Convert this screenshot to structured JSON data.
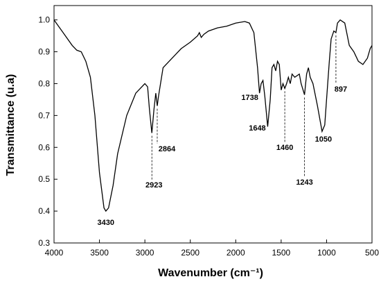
{
  "chart_data": {
    "type": "line",
    "xlabel": "Wavenumber (cm⁻¹)",
    "ylabel": "Transmittance (u.a)",
    "xlim": [
      4000,
      500
    ],
    "ylim": [
      0.3,
      1.045
    ],
    "xticks": [
      4000,
      3500,
      3000,
      2500,
      2000,
      1500,
      1000,
      500
    ],
    "yticks": [
      0.3,
      0.4,
      0.5,
      0.6,
      0.7,
      0.8,
      0.9,
      {
        "value": 1.0,
        "label": "1.0"
      }
    ],
    "color": "#000000",
    "x": [
      4000,
      3900,
      3800,
      3750,
      3700,
      3650,
      3600,
      3550,
      3500,
      3450,
      3430,
      3400,
      3350,
      3300,
      3200,
      3100,
      3000,
      2970,
      2950,
      2923,
      2900,
      2880,
      2864,
      2850,
      2800,
      2700,
      2600,
      2500,
      2420,
      2400,
      2380,
      2350,
      2300,
      2200,
      2100,
      2000,
      1900,
      1850,
      1800,
      1760,
      1738,
      1720,
      1700,
      1680,
      1648,
      1620,
      1600,
      1580,
      1560,
      1540,
      1520,
      1500,
      1480,
      1460,
      1440,
      1420,
      1400,
      1380,
      1350,
      1300,
      1280,
      1243,
      1220,
      1200,
      1180,
      1150,
      1100,
      1050,
      1020,
      1000,
      970,
      950,
      920,
      897,
      880,
      850,
      800,
      750,
      700,
      650,
      600,
      550,
      520,
      500
    ],
    "values": [
      1.0,
      0.96,
      0.92,
      0.905,
      0.9,
      0.87,
      0.82,
      0.7,
      0.52,
      0.41,
      0.4,
      0.41,
      0.48,
      0.58,
      0.7,
      0.77,
      0.8,
      0.79,
      0.72,
      0.645,
      0.72,
      0.77,
      0.73,
      0.76,
      0.85,
      0.88,
      0.91,
      0.93,
      0.95,
      0.96,
      0.945,
      0.955,
      0.965,
      0.975,
      0.98,
      0.99,
      0.995,
      0.99,
      0.96,
      0.85,
      0.77,
      0.8,
      0.81,
      0.76,
      0.665,
      0.75,
      0.85,
      0.86,
      0.84,
      0.87,
      0.86,
      0.78,
      0.8,
      0.785,
      0.8,
      0.82,
      0.8,
      0.83,
      0.82,
      0.83,
      0.8,
      0.765,
      0.83,
      0.85,
      0.82,
      0.8,
      0.73,
      0.65,
      0.67,
      0.75,
      0.87,
      0.94,
      0.965,
      0.96,
      0.99,
      1.0,
      0.99,
      0.92,
      0.9,
      0.87,
      0.86,
      0.88,
      0.91,
      0.92
    ],
    "peaks": [
      3430,
      2923,
      2864,
      1738,
      1648,
      1460,
      1243,
      1050,
      897
    ]
  }
}
